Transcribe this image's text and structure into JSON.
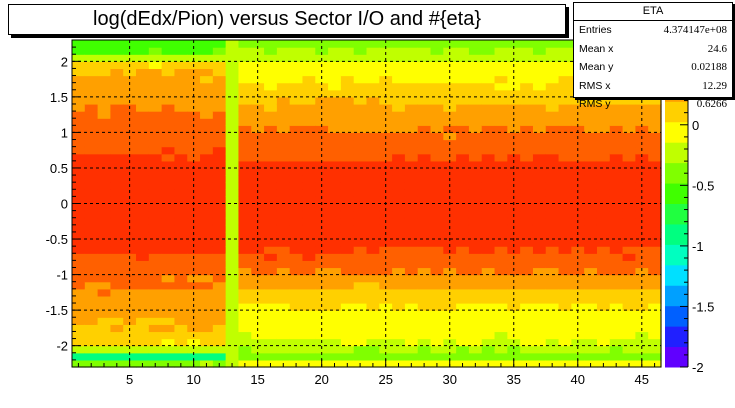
{
  "chart_data": {
    "type": "heatmap",
    "title": "log(dEdx/Pion) versus Sector I/O and #{eta}",
    "xlabel": "",
    "ylabel": "",
    "xlim": [
      0.5,
      46.5
    ],
    "ylim": [
      -2.3,
      2.3
    ],
    "zlim": [
      -2,
      0.7
    ],
    "x_ticks": [
      5,
      10,
      15,
      20,
      25,
      30,
      35,
      40,
      45
    ],
    "y_ticks": [
      -2,
      -1.5,
      -1,
      -0.5,
      0,
      0.5,
      1,
      1.5,
      2
    ],
    "y_tick_labels": [
      "-2",
      "-1.5",
      "-1",
      "-0.5",
      "0",
      "0.5",
      "1",
      "1.5",
      "2"
    ],
    "z_ticks": [
      -2,
      -1.5,
      -1,
      -0.5,
      0
    ],
    "z_tick_labels": [
      "-2",
      "-1.5",
      "-1",
      "-0.5",
      "0"
    ],
    "grid": true,
    "x_bins": 46,
    "y_bins": 46,
    "anomalous_x_bin": 13,
    "profile_y": [
      -2.25,
      -2.15,
      -2.05,
      -1.95,
      -1.85,
      -1.75,
      -1.6,
      -1.4,
      -1.2,
      -1.0,
      -0.8,
      -0.6,
      -0.4,
      -0.2,
      0.0,
      0.2,
      0.4,
      0.6,
      0.8,
      1.0,
      1.2,
      1.4,
      1.6,
      1.75,
      1.85,
      1.95,
      2.05,
      2.15,
      2.25
    ],
    "profile_value_sector_1_12": [
      -0.35,
      -0.9,
      -0.2,
      0.05,
      0.12,
      0.18,
      0.22,
      0.26,
      0.35,
      0.4,
      0.5,
      0.58,
      0.64,
      0.68,
      0.68,
      0.68,
      0.64,
      0.58,
      0.5,
      0.43,
      0.4,
      0.34,
      0.27,
      0.22,
      0.2,
      0.05,
      -0.2,
      -0.5,
      -0.6
    ],
    "profile_value_sector_14_46": [
      -0.1,
      -0.4,
      -0.3,
      -0.15,
      -0.12,
      -0.1,
      -0.05,
      0.03,
      0.18,
      0.35,
      0.48,
      0.55,
      0.64,
      0.68,
      0.68,
      0.68,
      0.64,
      0.55,
      0.46,
      0.38,
      0.3,
      0.2,
      0.08,
      0.0,
      -0.05,
      -0.1,
      -0.2,
      -0.3,
      -0.4
    ],
    "profile_value_sector_13": -0.2
  },
  "stats": {
    "title": "ETA",
    "rows": [
      {
        "label": "Entries",
        "value": "4.374147e+08"
      },
      {
        "label": "Mean x",
        "value": "24.6"
      },
      {
        "label": "Mean y",
        "value": "0.02188"
      },
      {
        "label": "RMS x",
        "value": "12.29"
      },
      {
        "label": "RMS y",
        "value": "0.6266"
      }
    ]
  },
  "palette": [
    "#6000ff",
    "#2020ff",
    "#0060ff",
    "#00a0ff",
    "#00e0ff",
    "#00ffc0",
    "#00ff80",
    "#20ff40",
    "#40ff00",
    "#80ff00",
    "#c0ff00",
    "#ffff00",
    "#ffd000",
    "#ffa000",
    "#ff6000",
    "#ff3000"
  ]
}
